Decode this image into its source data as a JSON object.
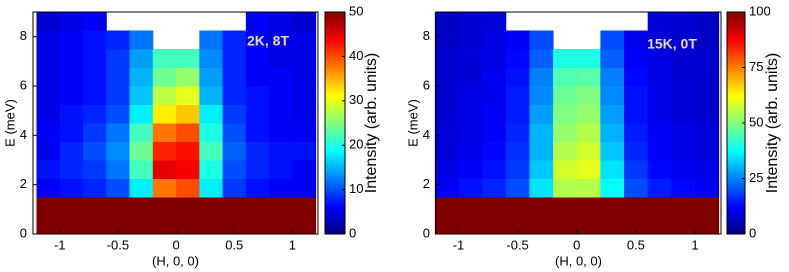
{
  "chart_data": [
    {
      "type": "heatmap",
      "annotation": "2K, 8T",
      "xlabel": "(H, 0, 0)",
      "ylabel": "E (meV)",
      "colorbar_label": "Intensity (arb. units)",
      "colormap": "jet",
      "xlim": [
        -1.23,
        1.22
      ],
      "ylim": [
        0,
        9
      ],
      "xticks": [
        -1,
        -0.5,
        0,
        0.5,
        1
      ],
      "yticks": [
        0,
        2,
        4,
        6,
        8
      ],
      "clim": [
        0,
        50
      ],
      "cticks": [
        0,
        10,
        20,
        30,
        40,
        50
      ],
      "x_bins": [
        -1.2,
        -1.0,
        -0.8,
        -0.6,
        -0.4,
        -0.2,
        0,
        0.2,
        0.4,
        0.6,
        0.8,
        1.0,
        1.2
      ],
      "y_bins": [
        0,
        0.75,
        1.5,
        2.25,
        3,
        3.75,
        4.5,
        5.25,
        6,
        6.75,
        7.5,
        8.25,
        9
      ],
      "z": [
        [
          50,
          50,
          50,
          50,
          50,
          50,
          50,
          50,
          50,
          50,
          50,
          50
        ],
        [
          50,
          50,
          50,
          50,
          50,
          50,
          50,
          50,
          50,
          50,
          50,
          50
        ],
        [
          6,
          7,
          8,
          10,
          18,
          38,
          40,
          18,
          9,
          7,
          6,
          6
        ],
        [
          7,
          8,
          9,
          12,
          22,
          45,
          44,
          20,
          10,
          8,
          7,
          6
        ],
        [
          6,
          8,
          10,
          13,
          24,
          42,
          43,
          22,
          11,
          8,
          7,
          7
        ],
        [
          6,
          7,
          9,
          12,
          22,
          38,
          40,
          20,
          10,
          7,
          6,
          6
        ],
        [
          5,
          7,
          8,
          10,
          18,
          32,
          34,
          18,
          9,
          7,
          6,
          5
        ],
        [
          5,
          6,
          7,
          9,
          16,
          28,
          30,
          15,
          8,
          7,
          6,
          5
        ],
        [
          5,
          6,
          7,
          9,
          15,
          24,
          26,
          14,
          8,
          6,
          6,
          5
        ],
        [
          5,
          6,
          7,
          9,
          14,
          22,
          22,
          13,
          8,
          6,
          5,
          5
        ],
        [
          5,
          6,
          7,
          8,
          12,
          null,
          null,
          12,
          8,
          6,
          5,
          5
        ],
        [
          4,
          5,
          6,
          null,
          null,
          null,
          null,
          null,
          null,
          6,
          5,
          4
        ]
      ]
    },
    {
      "type": "heatmap",
      "annotation": "15K, 0T",
      "xlabel": "(H, 0, 0)",
      "ylabel": "E (meV)",
      "colorbar_label": "Intensity (arb. units)",
      "colormap": "jet",
      "xlim": [
        -1.19,
        1.22
      ],
      "ylim": [
        0,
        9
      ],
      "xticks": [
        -1,
        -0.5,
        0,
        0.5,
        1
      ],
      "yticks": [
        0,
        2,
        4,
        6,
        8
      ],
      "clim": [
        0,
        100
      ],
      "cticks": [
        0,
        25,
        50,
        75,
        100
      ],
      "x_bins": [
        -1.2,
        -1.0,
        -0.8,
        -0.6,
        -0.4,
        -0.2,
        0,
        0.2,
        0.4,
        0.6,
        0.8,
        1.0,
        1.2
      ],
      "y_bins": [
        0,
        0.75,
        1.5,
        2.25,
        3,
        3.75,
        4.5,
        5.25,
        6,
        6.75,
        7.5,
        8.25,
        9
      ],
      "z": [
        [
          100,
          100,
          100,
          100,
          100,
          100,
          100,
          100,
          100,
          100,
          100,
          100
        ],
        [
          100,
          100,
          100,
          100,
          100,
          100,
          100,
          100,
          100,
          100,
          100,
          100
        ],
        [
          12,
          14,
          16,
          20,
          35,
          55,
          55,
          38,
          20,
          15,
          13,
          12
        ],
        [
          10,
          12,
          14,
          18,
          32,
          58,
          60,
          35,
          18,
          13,
          11,
          10
        ],
        [
          9,
          11,
          13,
          17,
          30,
          55,
          58,
          32,
          16,
          12,
          10,
          9
        ],
        [
          9,
          10,
          12,
          16,
          30,
          52,
          55,
          30,
          15,
          12,
          10,
          9
        ],
        [
          8,
          10,
          12,
          15,
          28,
          50,
          52,
          28,
          14,
          11,
          9,
          8
        ],
        [
          8,
          10,
          11,
          15,
          26,
          48,
          50,
          26,
          14,
          11,
          9,
          8
        ],
        [
          8,
          9,
          11,
          14,
          25,
          45,
          46,
          25,
          13,
          10,
          9,
          8
        ],
        [
          8,
          9,
          10,
          13,
          22,
          40,
          40,
          22,
          12,
          10,
          8,
          8
        ],
        [
          7,
          8,
          10,
          12,
          20,
          null,
          null,
          20,
          11,
          9,
          8,
          7
        ],
        [
          7,
          8,
          9,
          null,
          null,
          null,
          null,
          null,
          null,
          9,
          8,
          7
        ]
      ]
    }
  ]
}
